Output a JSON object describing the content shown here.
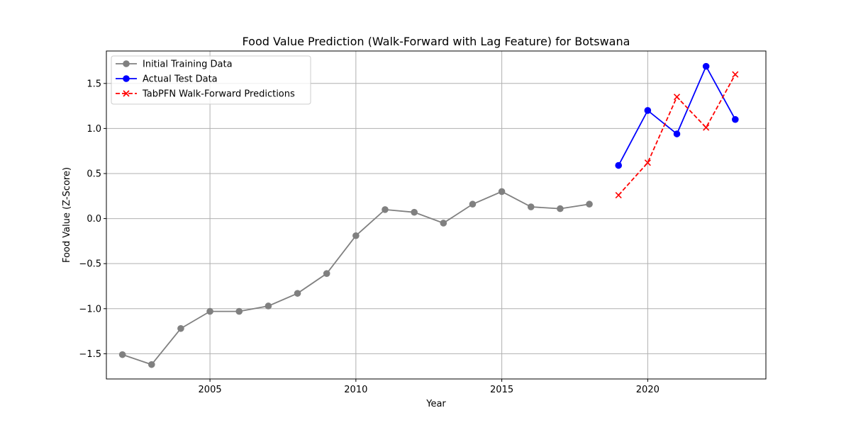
{
  "chart_data": {
    "type": "line",
    "title": "Food Value Prediction (Walk-Forward with Lag Feature) for Botswana",
    "xlabel": "Year",
    "ylabel": "Food Value (Z-Score)",
    "xlim": [
      2001.45,
      2024.05
    ],
    "ylim": [
      -1.78,
      1.86
    ],
    "xticks": [
      2005,
      2010,
      2015,
      2020
    ],
    "yticks": [
      -1.5,
      -1.0,
      -0.5,
      0.0,
      0.5,
      1.0,
      1.5
    ],
    "xtick_labels": [
      "2005",
      "2010",
      "2015",
      "2020"
    ],
    "ytick_labels": [
      "−1.5",
      "−1.0",
      "−0.5",
      "0.0",
      "0.5",
      "1.0",
      "1.5"
    ],
    "grid": true,
    "legend_position": "top-left",
    "series": [
      {
        "name": "Initial Training Data",
        "color": "#808080",
        "line_style": "solid",
        "marker": "circle",
        "x": [
          2002,
          2003,
          2004,
          2005,
          2006,
          2007,
          2008,
          2009,
          2010,
          2011,
          2012,
          2013,
          2014,
          2015,
          2016,
          2017,
          2018
        ],
        "y": [
          -1.51,
          -1.62,
          -1.22,
          -1.03,
          -1.03,
          -0.97,
          -0.83,
          -0.61,
          -0.19,
          0.1,
          0.07,
          -0.05,
          0.16,
          0.3,
          0.13,
          0.11,
          0.16
        ]
      },
      {
        "name": "Actual Test Data",
        "color": "#0000ff",
        "line_style": "solid",
        "marker": "circle",
        "x": [
          2019,
          2020,
          2021,
          2022,
          2023
        ],
        "y": [
          0.59,
          1.2,
          0.94,
          1.69,
          1.1
        ]
      },
      {
        "name": "TabPFN Walk-Forward Predictions",
        "color": "#ff0000",
        "line_style": "dashed",
        "marker": "x",
        "x": [
          2019,
          2020,
          2021,
          2022,
          2023
        ],
        "y": [
          0.26,
          0.62,
          1.35,
          1.01,
          1.6
        ]
      }
    ]
  }
}
